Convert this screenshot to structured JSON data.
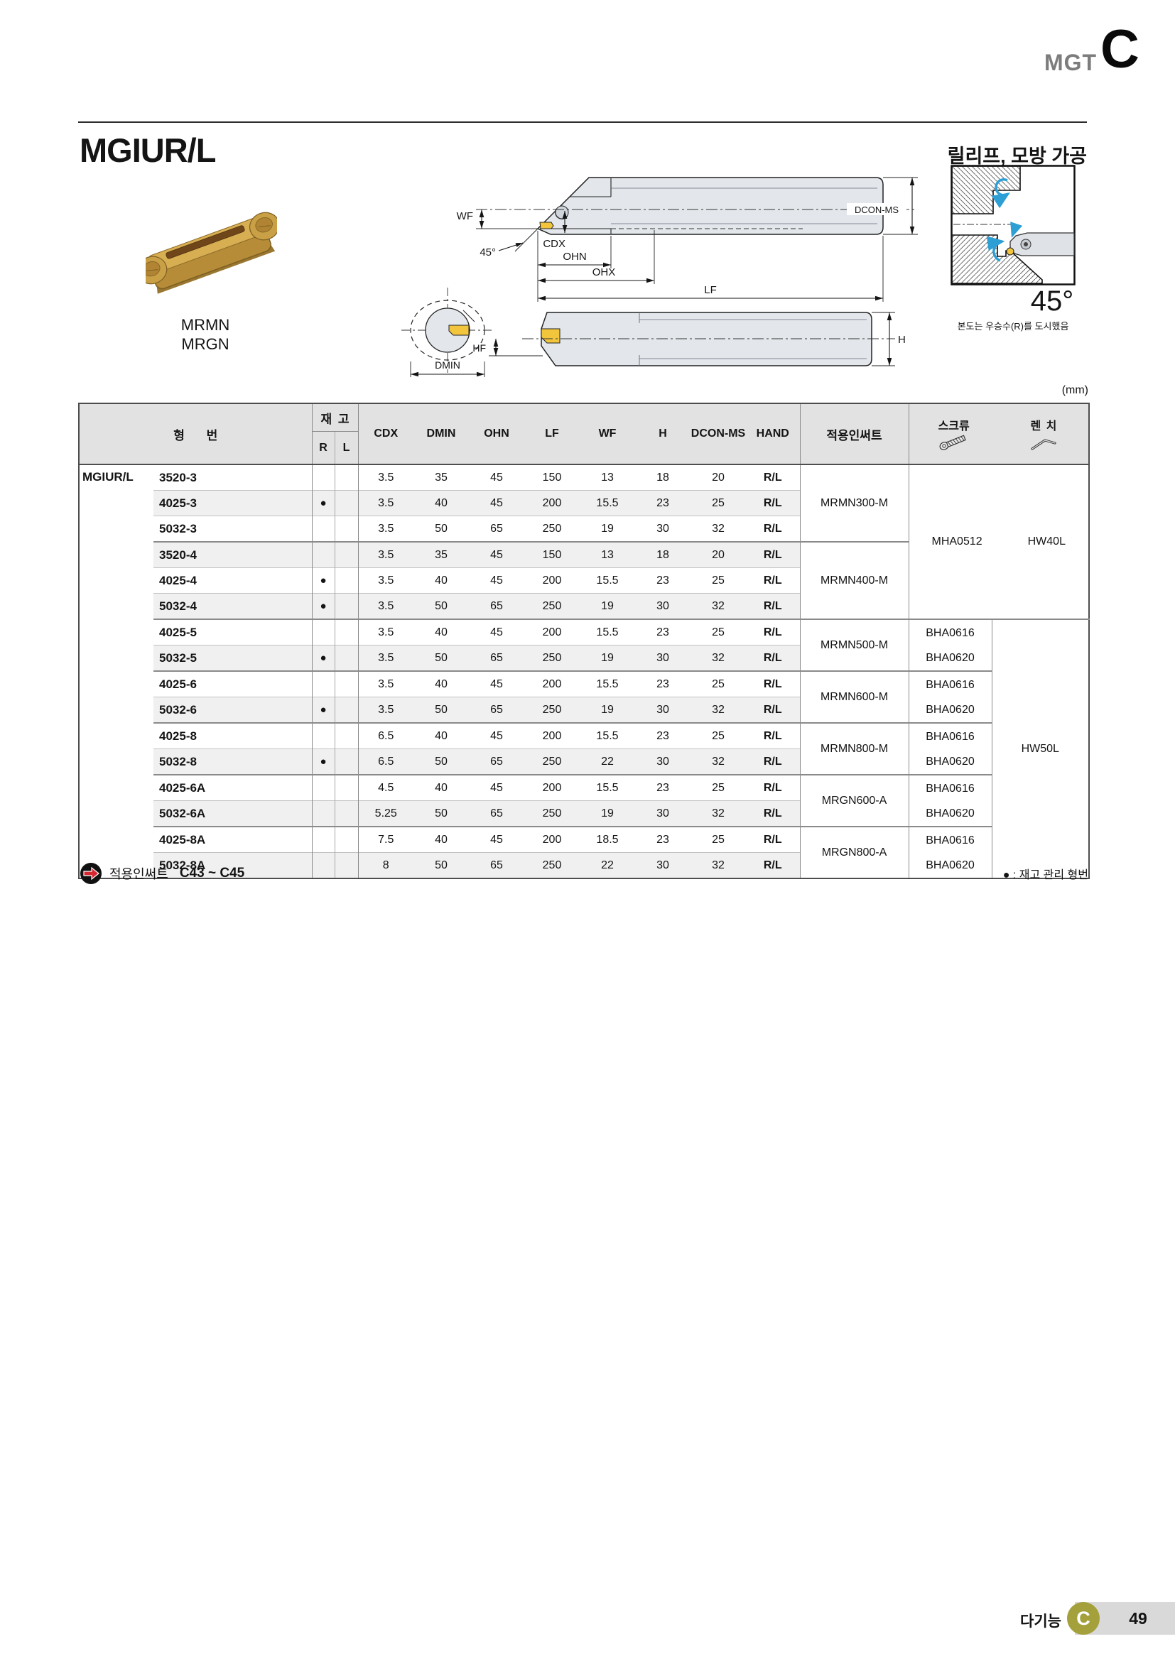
{
  "header": {
    "series": "MGT",
    "section": "C"
  },
  "title": "MGIUR/L",
  "subtitle": "릴리프, 모방 가공",
  "insert_labels": [
    "MRMN",
    "MRGN"
  ],
  "unit": "(mm)",
  "drawing": {
    "wf": "WF",
    "angle": "45°",
    "cdx": "CDX",
    "ohn": "OHN",
    "ohx": "OHX",
    "lf": "LF",
    "dcon": "DCON-MS",
    "hf": "HF",
    "dmin": "DMIN",
    "h": "H"
  },
  "appdiagram": {
    "angle": "45°",
    "caption": "본도는 우승수(R)를 도시했음"
  },
  "table": {
    "prefix": "MGIUR/L",
    "head": {
      "model": "형 번",
      "stock": "재 고",
      "r": "R",
      "l": "L",
      "cols": [
        "CDX",
        "DMIN",
        "OHN",
        "LF",
        "WF",
        "H",
        "DCON-MS",
        "HAND"
      ],
      "insert": "적용인써트",
      "screw": "스크류",
      "wrench": "렌 치"
    },
    "rows": [
      {
        "model": "3520-3",
        "dot": false,
        "v": [
          "3.5",
          "35",
          "45",
          "150",
          "13",
          "18",
          "20",
          "R/L"
        ]
      },
      {
        "model": "4025-3",
        "dot": true,
        "v": [
          "3.5",
          "40",
          "45",
          "200",
          "15.5",
          "23",
          "25",
          "R/L"
        ]
      },
      {
        "model": "5032-3",
        "dot": false,
        "v": [
          "3.5",
          "50",
          "65",
          "250",
          "19",
          "30",
          "32",
          "R/L"
        ]
      },
      {
        "model": "3520-4",
        "dot": false,
        "v": [
          "3.5",
          "35",
          "45",
          "150",
          "13",
          "18",
          "20",
          "R/L"
        ]
      },
      {
        "model": "4025-4",
        "dot": true,
        "v": [
          "3.5",
          "40",
          "45",
          "200",
          "15.5",
          "23",
          "25",
          "R/L"
        ]
      },
      {
        "model": "5032-4",
        "dot": true,
        "v": [
          "3.5",
          "50",
          "65",
          "250",
          "19",
          "30",
          "32",
          "R/L"
        ]
      },
      {
        "model": "4025-5",
        "dot": false,
        "v": [
          "3.5",
          "40",
          "45",
          "200",
          "15.5",
          "23",
          "25",
          "R/L"
        ]
      },
      {
        "model": "5032-5",
        "dot": true,
        "v": [
          "3.5",
          "50",
          "65",
          "250",
          "19",
          "30",
          "32",
          "R/L"
        ]
      },
      {
        "model": "4025-6",
        "dot": false,
        "v": [
          "3.5",
          "40",
          "45",
          "200",
          "15.5",
          "23",
          "25",
          "R/L"
        ]
      },
      {
        "model": "5032-6",
        "dot": true,
        "v": [
          "3.5",
          "50",
          "65",
          "250",
          "19",
          "30",
          "32",
          "R/L"
        ]
      },
      {
        "model": "4025-8",
        "dot": false,
        "v": [
          "6.5",
          "40",
          "45",
          "200",
          "15.5",
          "23",
          "25",
          "R/L"
        ]
      },
      {
        "model": "5032-8",
        "dot": true,
        "v": [
          "6.5",
          "50",
          "65",
          "250",
          "22",
          "30",
          "32",
          "R/L"
        ]
      },
      {
        "model": "4025-6A",
        "dot": false,
        "v": [
          "4.5",
          "40",
          "45",
          "200",
          "15.5",
          "23",
          "25",
          "R/L"
        ]
      },
      {
        "model": "5032-6A",
        "dot": false,
        "v": [
          "5.25",
          "50",
          "65",
          "250",
          "19",
          "30",
          "32",
          "R/L"
        ]
      },
      {
        "model": "4025-8A",
        "dot": false,
        "v": [
          "7.5",
          "40",
          "45",
          "200",
          "18.5",
          "23",
          "25",
          "R/L"
        ]
      },
      {
        "model": "5032-8A",
        "dot": false,
        "v": [
          "8",
          "50",
          "65",
          "250",
          "22",
          "30",
          "32",
          "R/L"
        ]
      }
    ],
    "stock_dot": "●",
    "group_starts": [
      0,
      3,
      6,
      8,
      10,
      12,
      14
    ],
    "insert_merges": [
      {
        "start": 0,
        "span": 3,
        "label": "MRMN300-M"
      },
      {
        "start": 3,
        "span": 3,
        "label": "MRMN400-M"
      },
      {
        "start": 6,
        "span": 2,
        "label": "MRMN500-M"
      },
      {
        "start": 8,
        "span": 2,
        "label": "MRMN600-M"
      },
      {
        "start": 10,
        "span": 2,
        "label": "MRMN800-M"
      },
      {
        "start": 12,
        "span": 2,
        "label": "MRGN600-A"
      },
      {
        "start": 14,
        "span": 2,
        "label": "MRGN800-A"
      }
    ],
    "screw_first": {
      "start": 0,
      "span": 6,
      "screw": "MHA0512",
      "wrench": "HW40L"
    },
    "screw_merges": [
      {
        "start": 6,
        "span": 2,
        "lines": [
          "BHA0616",
          "BHA0620"
        ]
      },
      {
        "start": 8,
        "span": 2,
        "lines": [
          "BHA0616",
          "BHA0620"
        ]
      },
      {
        "start": 10,
        "span": 2,
        "lines": [
          "BHA0616",
          "BHA0620"
        ]
      },
      {
        "start": 12,
        "span": 2,
        "lines": [
          "BHA0616",
          "BHA0620"
        ]
      },
      {
        "start": 14,
        "span": 2,
        "lines": [
          "BHA0616",
          "BHA0620"
        ]
      }
    ],
    "wrench_merge": {
      "start": 6,
      "span": 10,
      "label": "HW50L"
    }
  },
  "notes": {
    "insert_label": "적용인써트",
    "insert_range": "C43 ~ C45",
    "stock": "● : 재고 관리 형번"
  },
  "footer": {
    "category": "다기능",
    "badge": "C",
    "page": "49"
  },
  "colors": {
    "insert_gold": "#f2c53d",
    "bar_fill": "#e3e7eb",
    "badge_olive": "#a4a13c",
    "icon_red": "#d7282f",
    "arrow_blue": "#2e9fd4"
  }
}
